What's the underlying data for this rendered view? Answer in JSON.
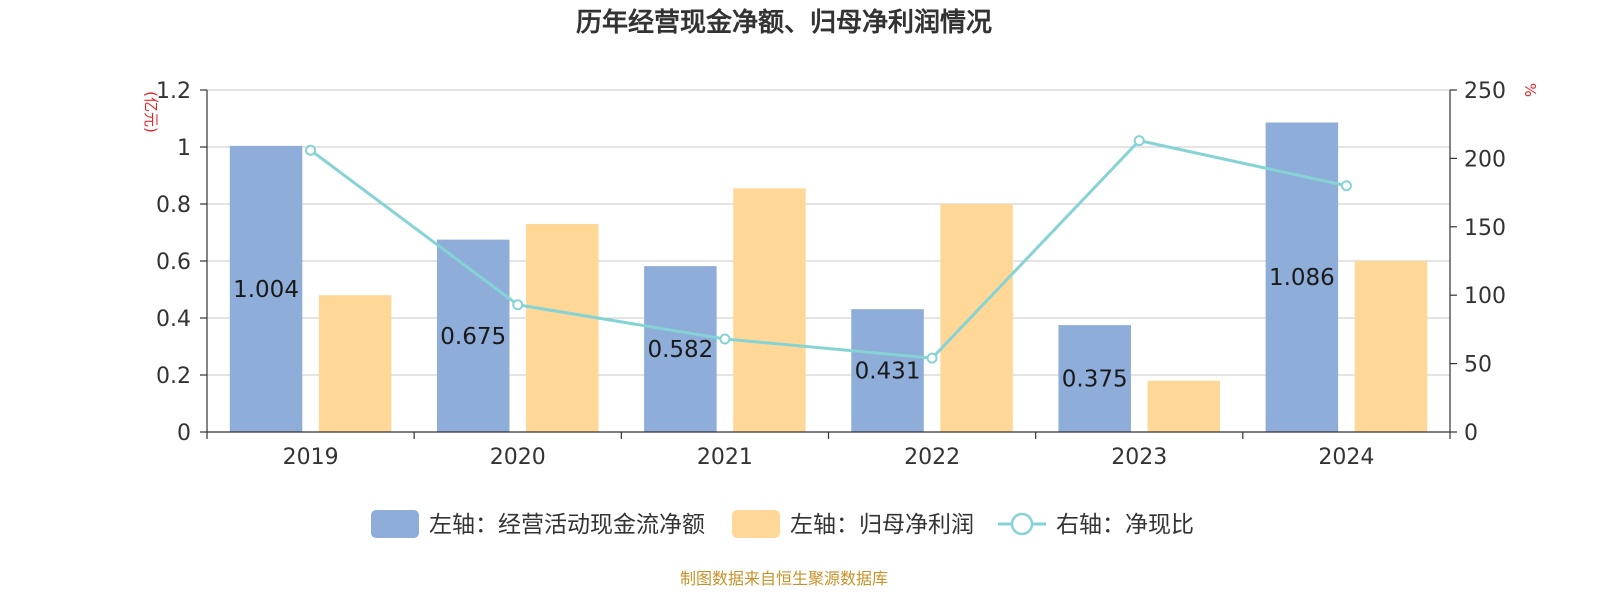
{
  "chart_data": {
    "type": "bar",
    "title": "历年经营现金净额、归母净利润情况",
    "categories": [
      "2019",
      "2020",
      "2021",
      "2022",
      "2023",
      "2024"
    ],
    "left_axis": {
      "unit": "(亿元)",
      "ylim": [
        0,
        1.2
      ],
      "ticks": [
        "0",
        "0.2",
        "0.4",
        "0.6",
        "0.8",
        "1",
        "1.2"
      ]
    },
    "right_axis": {
      "unit": "%",
      "ylim": [
        0,
        250
      ],
      "ticks": [
        "0",
        "50",
        "100",
        "150",
        "200",
        "250"
      ]
    },
    "series": [
      {
        "name": "左轴：经营活动现金流净额",
        "type": "bar",
        "axis": "left",
        "color": "#8eadd9",
        "values": [
          1.004,
          0.675,
          0.582,
          0.431,
          0.375,
          1.086
        ],
        "labels": [
          "1.004",
          "0.675",
          "0.582",
          "0.431",
          "0.375",
          "1.086"
        ]
      },
      {
        "name": "左轴：归母净利润",
        "type": "bar",
        "axis": "left",
        "color": "#ffd898",
        "values": [
          0.48,
          0.73,
          0.855,
          0.8,
          0.18,
          0.6
        ]
      },
      {
        "name": "右轴：净现比",
        "type": "line",
        "axis": "right",
        "color": "#86d3d6",
        "values": [
          206,
          93,
          68,
          54,
          213,
          180
        ]
      }
    ],
    "grid": true,
    "legend_position": "bottom"
  },
  "source_text": "制图数据来自恒生聚源数据库"
}
